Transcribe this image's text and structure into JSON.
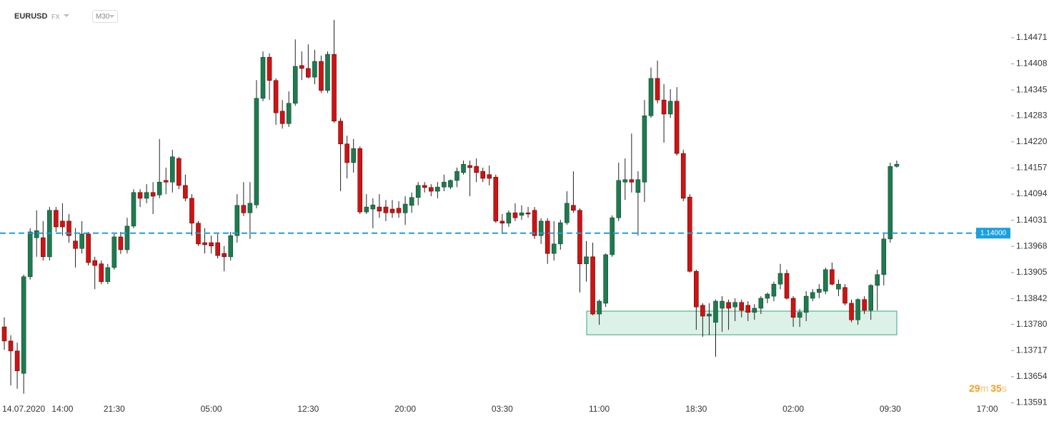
{
  "chart_data": {
    "type": "candlestick",
    "symbol": "EURUSD",
    "market": "FX",
    "timeframe": "M30",
    "countdown": [
      "29",
      "m",
      "35",
      "s"
    ],
    "up_color": "#1f7a4f",
    "down_color": "#cc1414",
    "categories": [
      null,
      null,
      null,
      "14.07.2020",
      null,
      null,
      null,
      null,
      null,
      "14:00",
      null,
      null,
      null,
      null,
      null,
      null,
      null,
      "21:30",
      null,
      null,
      null,
      null,
      null,
      null,
      null,
      null,
      null,
      null,
      null,
      null,
      null,
      null,
      "05:00",
      null,
      null,
      null,
      null,
      null,
      null,
      null,
      null,
      null,
      null,
      null,
      null,
      null,
      null,
      "12:30",
      null,
      null,
      null,
      null,
      null,
      null,
      null,
      null,
      null,
      null,
      null,
      null,
      null,
      null,
      "20:00",
      null,
      null,
      null,
      null,
      null,
      null,
      null,
      null,
      null,
      null,
      null,
      null,
      null,
      null,
      "03:30",
      null,
      null,
      null,
      null,
      null,
      null,
      null,
      null,
      null,
      null,
      null,
      null,
      null,
      null,
      "11:00",
      null,
      null,
      null,
      null,
      null,
      null,
      null,
      null,
      null,
      null,
      null,
      null,
      null,
      null,
      "18:30",
      null,
      null,
      null,
      null,
      null,
      null,
      null,
      null,
      null,
      null,
      null,
      null,
      null,
      null,
      "02:00",
      null,
      null,
      null,
      null,
      null,
      null,
      null,
      null,
      null,
      null,
      null,
      null,
      null,
      null,
      "09:30",
      null,
      null,
      null,
      null,
      null,
      null,
      null,
      null,
      null,
      null,
      null,
      null,
      null,
      null,
      "17:00"
    ],
    "open": [
      1.13774,
      1.1374,
      1.13716,
      1.13662,
      1.13895,
      1.13989,
      1.13989,
      1.13943,
      1.14055,
      1.14029,
      1.14029,
      1.13981,
      1.13963,
      1.13998,
      1.13934,
      1.13926,
      1.13883,
      1.13917,
      1.13991,
      1.1396,
      1.14017,
      1.14098,
      1.14084,
      1.14098,
      1.14092,
      1.14127,
      1.14123,
      1.1418,
      1.14115,
      1.14084,
      1.14024,
      1.13977,
      1.13977,
      1.13977,
      1.13951,
      1.13943,
      1.13994,
      1.14067,
      1.14049,
      1.14068,
      1.14325,
      1.14424,
      1.14368,
      1.14294,
      1.14264,
      1.14313,
      1.14404,
      1.14397,
      1.14376,
      1.14414,
      1.14344,
      1.14431,
      1.1427,
      1.14215,
      1.1417,
      1.14204,
      1.14051,
      1.14058,
      1.14063,
      1.14063,
      1.14058,
      1.1406,
      1.14049,
      1.14067,
      1.14086,
      1.14115,
      1.1411,
      1.14101,
      1.14111,
      1.14111,
      1.14127,
      1.14146,
      1.14163,
      1.14161,
      1.14149,
      1.14141,
      1.14135,
      1.14029,
      1.14024,
      1.14049,
      1.14043,
      1.14049,
      1.14055,
      1.13994,
      1.14029,
      1.13951,
      1.13974,
      1.14025,
      1.14067,
      1.14055,
      1.13926,
      1.13943,
      1.13805,
      1.13831,
      1.13948,
      1.14037,
      1.14123,
      1.14129,
      1.14098,
      1.14123,
      1.14283,
      1.14373,
      1.14321,
      1.14287,
      1.14318,
      1.14192,
      1.14087,
      1.13908,
      1.13826,
      1.138,
      1.13785,
      1.13819,
      1.13833,
      1.13822,
      1.13833,
      1.13826,
      1.13809,
      1.13819,
      1.13843,
      1.13848,
      1.13877,
      1.13903,
      1.13843,
      1.13797,
      1.13809,
      1.13843,
      1.13857,
      1.1386,
      1.13912,
      1.13865,
      1.13869,
      1.13831,
      1.13791,
      1.1384,
      1.13814,
      1.13874,
      1.139,
      1.13986,
      1.14161,
      null,
      null,
      null,
      null,
      null,
      null,
      null,
      null,
      null,
      null,
      null,
      null,
      null,
      null
    ],
    "high": [
      1.13797,
      1.13754,
      1.13736,
      1.139,
      1.14012,
      1.14055,
      1.14029,
      1.14063,
      1.14063,
      1.14072,
      1.14046,
      1.14012,
      1.14029,
      1.14003,
      1.13943,
      1.13934,
      1.13926,
      1.13998,
      1.14003,
      1.14037,
      1.14106,
      1.14106,
      1.14118,
      1.14123,
      1.14227,
      1.14158,
      1.14201,
      1.14184,
      1.14141,
      1.14094,
      1.14029,
      1.14012,
      1.13994,
      1.13998,
      1.13969,
      1.14003,
      1.14094,
      1.14123,
      1.14123,
      1.14369,
      1.14438,
      1.14433,
      1.14373,
      1.14321,
      1.14342,
      1.14467,
      1.14438,
      1.14455,
      1.14442,
      1.14428,
      1.14438,
      1.14514,
      1.14278,
      1.14235,
      1.14227,
      1.14209,
      1.14094,
      1.14084,
      1.14094,
      1.1408,
      1.1408,
      1.14077,
      1.14089,
      1.14098,
      1.14123,
      1.14123,
      1.14118,
      1.14123,
      1.14141,
      1.14129,
      1.14158,
      1.14175,
      1.14175,
      1.1418,
      1.14158,
      1.14163,
      1.14141,
      1.14046,
      1.14055,
      1.14072,
      1.14067,
      1.14063,
      1.14063,
      1.14036,
      1.14036,
      1.14029,
      1.14032,
      1.14101,
      1.14149,
      1.1406,
      1.13981,
      1.13977,
      1.1384,
      1.13951,
      1.14043,
      1.1417,
      1.1418,
      1.1424,
      1.14149,
      1.14321,
      1.14399,
      1.14416,
      1.14359,
      1.14347,
      1.14352,
      1.14201,
      1.14094,
      1.13912,
      1.13831,
      1.13831,
      1.1384,
      1.13848,
      1.1384,
      1.13843,
      1.1384,
      1.13836,
      1.13829,
      1.13848,
      1.13857,
      1.13883,
      1.13926,
      1.13912,
      1.13848,
      1.13817,
      1.1386,
      1.13865,
      1.13877,
      1.13917,
      1.13929,
      1.13888,
      1.13877,
      1.1384,
      1.13843,
      1.13848,
      1.13877,
      1.13912,
      1.13998,
      1.1417,
      1.14175,
      null,
      null,
      null,
      null,
      null,
      null,
      null,
      null,
      null,
      null,
      null,
      null,
      null,
      null
    ],
    "low": [
      1.13719,
      1.13633,
      1.13625,
      1.13613,
      1.13888,
      1.13943,
      1.13934,
      1.13934,
      1.14003,
      1.13994,
      1.13977,
      1.13917,
      1.13951,
      1.13922,
      1.13865,
      1.13877,
      1.13877,
      1.13912,
      1.1395,
      1.13951,
      1.14012,
      1.14063,
      1.14072,
      1.14046,
      1.14084,
      1.14094,
      1.14098,
      1.14106,
      1.14077,
      1.13994,
      1.13969,
      1.13951,
      1.13951,
      1.13939,
      1.13908,
      1.13934,
      1.13977,
      1.14041,
      1.13986,
      1.1406,
      1.14318,
      1.14321,
      1.14261,
      1.14252,
      1.14256,
      1.14307,
      1.14369,
      1.14373,
      1.14359,
      1.14338,
      1.14338,
      1.14266,
      1.14101,
      1.14132,
      1.14146,
      1.14046,
      1.14046,
      1.14012,
      1.14037,
      1.14029,
      1.14037,
      1.14037,
      1.1402,
      1.14049,
      1.14067,
      1.14098,
      1.14089,
      1.14084,
      1.14101,
      1.14106,
      1.14111,
      1.14141,
      1.14089,
      1.14123,
      1.14123,
      1.14115,
      1.14025,
      1.13998,
      1.14015,
      1.14029,
      1.14032,
      1.14037,
      1.13986,
      1.13974,
      1.13926,
      1.13934,
      1.1396,
      1.1402,
      1.14049,
      1.13857,
      1.13883,
      1.13802,
      1.13779,
      1.13822,
      1.13943,
      1.14029,
      1.1408,
      1.14098,
      1.13994,
      1.14075,
      1.14278,
      1.14313,
      1.14218,
      1.14278,
      1.14187,
      1.14077,
      1.13905,
      1.13767,
      1.1375,
      1.13754,
      1.13702,
      1.13762,
      1.13767,
      1.13788,
      1.13797,
      1.13788,
      1.13791,
      1.13805,
      1.13831,
      1.13836,
      1.13865,
      1.1384,
      1.13774,
      1.13774,
      1.13788,
      1.13836,
      1.13843,
      1.13853,
      1.13874,
      1.13848,
      1.13826,
      1.13785,
      1.13779,
      1.13805,
      1.13791,
      1.13814,
      1.13874,
      1.13977,
      1.14158,
      null,
      null,
      null,
      null,
      null,
      null,
      null,
      null,
      null,
      null,
      null,
      null,
      null,
      null
    ],
    "close": [
      1.1374,
      1.13716,
      1.13668,
      1.13895,
      1.14003,
      1.14006,
      1.13943,
      1.14055,
      1.14015,
      1.14015,
      1.13994,
      1.13963,
      1.13998,
      1.13929,
      1.13922,
      1.13883,
      1.13917,
      1.13991,
      1.1396,
      1.14017,
      1.14098,
      1.14084,
      1.14098,
      1.14089,
      1.14123,
      1.14123,
      1.14184,
      1.14115,
      1.14084,
      1.14024,
      1.13974,
      1.13972,
      1.13969,
      1.13946,
      1.13943,
      1.13994,
      1.14067,
      1.14049,
      1.14072,
      1.14325,
      1.14424,
      1.14368,
      1.1429,
      1.14264,
      1.14313,
      1.14402,
      1.14397,
      1.14376,
      1.14414,
      1.14344,
      1.14431,
      1.1427,
      1.14215,
      1.1417,
      1.14204,
      1.14051,
      1.14063,
      1.14068,
      1.14053,
      1.14049,
      1.14049,
      1.14049,
      1.1407,
      1.14086,
      1.14115,
      1.1411,
      1.14101,
      1.14111,
      1.14123,
      1.14127,
      1.14149,
      1.14166,
      1.14158,
      1.14146,
      1.14132,
      1.14132,
      1.14029,
      1.14024,
      1.14049,
      1.14037,
      1.14049,
      1.14046,
      1.13994,
      1.14029,
      1.13951,
      1.13974,
      1.14025,
      1.14072,
      1.14055,
      1.13926,
      1.13943,
      1.13805,
      1.13836,
      1.13948,
      1.14037,
      1.14127,
      1.14129,
      1.14123,
      1.14129,
      1.14283,
      1.14373,
      1.14321,
      1.14287,
      1.14318,
      1.14192,
      1.14084,
      1.13908,
      1.13822,
      1.138,
      1.13805,
      1.13836,
      1.13836,
      1.13819,
      1.13833,
      1.13814,
      1.13809,
      1.13819,
      1.13843,
      1.13853,
      1.13877,
      1.13903,
      1.13843,
      1.13797,
      1.13809,
      1.13848,
      1.13857,
      1.13865,
      1.13912,
      1.13877,
      1.13877,
      1.13831,
      1.13791,
      1.1384,
      1.13814,
      1.13874,
      1.139,
      1.13986,
      1.14161,
      1.14166,
      null,
      null,
      null,
      null,
      null,
      null,
      null,
      null,
      null,
      null,
      null,
      null,
      null,
      null
    ],
    "ylim": [
      1.13591,
      1.14562
    ],
    "yticks": [
      1.14471,
      1.14408,
      1.14345,
      1.14283,
      {
        "value": 1.1422,
        "label": "1.14220"
      },
      1.14157,
      1.14094,
      1.14031,
      1.13968,
      1.13905,
      1.13842,
      {
        "value": 1.1378,
        "label": "1.13780"
      },
      1.13717,
      1.13654,
      1.13591
    ],
    "current_price": {
      "value": 1.14,
      "label": "1.14000"
    },
    "zone": {
      "low": 1.13755,
      "high": 1.13812
    }
  }
}
